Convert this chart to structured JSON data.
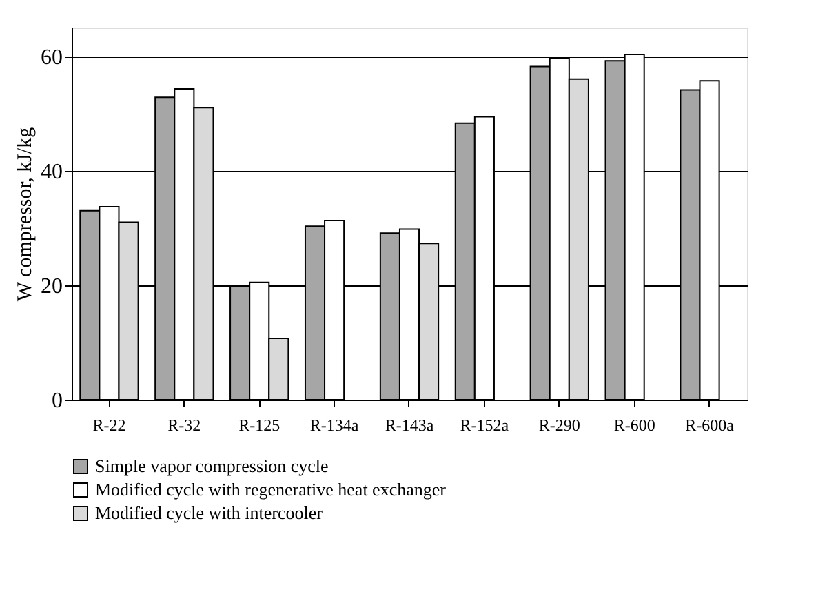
{
  "chart_data": {
    "type": "bar",
    "ylabel": "W compressor, kJ/kg",
    "categories": [
      "R-22",
      "R-32",
      "R-125",
      "R-134a",
      "R-143a",
      "R-152a",
      "R-290",
      "R-600",
      "R-600a"
    ],
    "series": [
      {
        "name": "Simple vapor compression cycle",
        "color": "#a6a6a6",
        "values": [
          33,
          52.8,
          19.8,
          30.3,
          29.1,
          48.3,
          58.2,
          59.2,
          54.1
        ]
      },
      {
        "name": "Modified cycle with regenerative heat exchanger",
        "color": "#ffffff",
        "values": [
          33.7,
          54.3,
          20.5,
          31.3,
          29.8,
          49.4,
          59.6,
          60.3,
          55.7
        ]
      },
      {
        "name": "Modified cycle with intercooler",
        "color": "#d9d9d9",
        "values": [
          31,
          51,
          10.7,
          null,
          27.3,
          null,
          56,
          null,
          null
        ]
      }
    ],
    "ylim": [
      0,
      65
    ],
    "yticks": [
      0,
      20,
      40,
      60
    ],
    "grid": "y",
    "legend": "bottom"
  }
}
